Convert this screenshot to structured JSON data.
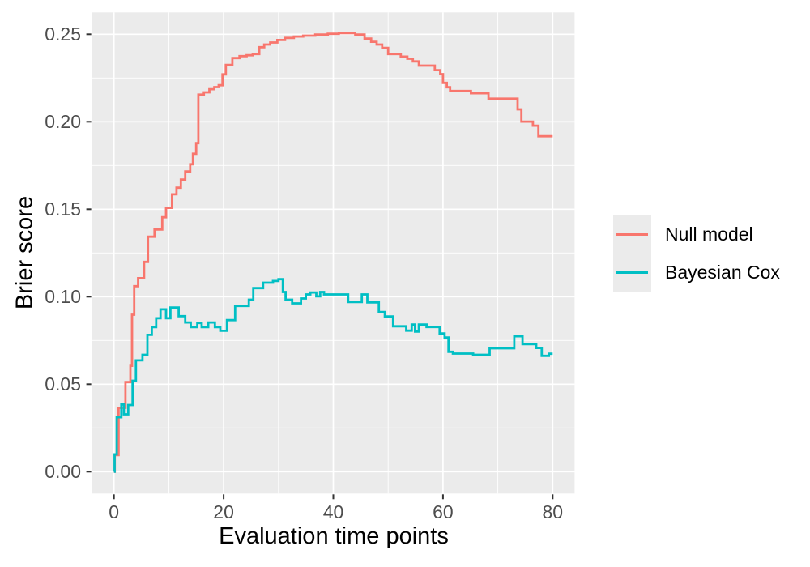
{
  "figure": {
    "background": "#ffffff"
  },
  "chart_data": {
    "type": "line",
    "variant": "step",
    "title": "",
    "xlabel": "Evaluation time points",
    "ylabel": "Brier score",
    "xlim": [
      -4,
      84
    ],
    "ylim": [
      -0.0125,
      0.2625
    ],
    "x_axis_range_shown": [
      0,
      80
    ],
    "y_axis_range_shown": [
      0.0,
      0.25
    ],
    "grid": true,
    "legend_position": "right",
    "panel_background": "#ebebeb",
    "grid_color": "#ffffff",
    "tick_color": "#333333",
    "tick_label_color": "#4d4d4d",
    "x_major_ticks": [
      {
        "value": 0,
        "label": "0"
      },
      {
        "value": 20,
        "label": "20"
      },
      {
        "value": 40,
        "label": "40"
      },
      {
        "value": 60,
        "label": "60"
      },
      {
        "value": 80,
        "label": "80"
      }
    ],
    "x_minor_ticks": [
      10,
      30,
      50,
      70
    ],
    "y_major_ticks": [
      {
        "value": 0.0,
        "label": "0.00"
      },
      {
        "value": 0.05,
        "label": "0.05"
      },
      {
        "value": 0.1,
        "label": "0.10"
      },
      {
        "value": 0.15,
        "label": "0.15"
      },
      {
        "value": 0.2,
        "label": "0.20"
      },
      {
        "value": 0.25,
        "label": "0.25"
      }
    ],
    "y_minor_ticks": [
      0.025,
      0.075,
      0.125,
      0.175,
      0.225
    ],
    "series": [
      {
        "name": "Null model",
        "color": "#F8766D",
        "points": [
          [
            0,
            0
          ],
          [
            0.15,
            0.0095
          ],
          [
            0.85,
            0.0365
          ],
          [
            2.1,
            0.0512
          ],
          [
            3.0,
            0.0605
          ],
          [
            3.3,
            0.0897
          ],
          [
            3.7,
            0.106
          ],
          [
            4.4,
            0.1106
          ],
          [
            5.5,
            0.1199
          ],
          [
            6.2,
            0.1343
          ],
          [
            7.4,
            0.1384
          ],
          [
            8.8,
            0.1454
          ],
          [
            9.5,
            0.1508
          ],
          [
            10.6,
            0.1585
          ],
          [
            11.4,
            0.1623
          ],
          [
            12.2,
            0.167
          ],
          [
            13.0,
            0.1716
          ],
          [
            13.9,
            0.1757
          ],
          [
            14.4,
            0.1817
          ],
          [
            15.0,
            0.1878
          ],
          [
            15.4,
            0.2155
          ],
          [
            16.4,
            0.2168
          ],
          [
            17.4,
            0.2186
          ],
          [
            18.3,
            0.2198
          ],
          [
            19.1,
            0.2209
          ],
          [
            19.8,
            0.2271
          ],
          [
            20.4,
            0.2325
          ],
          [
            21.6,
            0.2364
          ],
          [
            22.9,
            0.2375
          ],
          [
            24.2,
            0.238
          ],
          [
            25.3,
            0.2387
          ],
          [
            26.5,
            0.2426
          ],
          [
            27.4,
            0.2441
          ],
          [
            28.5,
            0.2453
          ],
          [
            29.8,
            0.2467
          ],
          [
            31.2,
            0.2479
          ],
          [
            32.8,
            0.2487
          ],
          [
            34.5,
            0.2492
          ],
          [
            36.7,
            0.2498
          ],
          [
            39.0,
            0.2503
          ],
          [
            41.0,
            0.2507
          ],
          [
            44.0,
            0.2498
          ],
          [
            45.7,
            0.2475
          ],
          [
            46.9,
            0.2457
          ],
          [
            47.9,
            0.2441
          ],
          [
            48.9,
            0.2422
          ],
          [
            50.0,
            0.2387
          ],
          [
            52.3,
            0.2372
          ],
          [
            53.5,
            0.236
          ],
          [
            54.5,
            0.2345
          ],
          [
            55.6,
            0.2321
          ],
          [
            58.5,
            0.2295
          ],
          [
            59.5,
            0.2272
          ],
          [
            60.0,
            0.2222
          ],
          [
            60.7,
            0.2197
          ],
          [
            61.3,
            0.2176
          ],
          [
            65.1,
            0.2163
          ],
          [
            68.3,
            0.2132
          ],
          [
            73.6,
            0.2071
          ],
          [
            74.3,
            0.2001
          ],
          [
            76.4,
            0.1978
          ],
          [
            77.4,
            0.1917
          ],
          [
            80,
            0.1917
          ]
        ]
      },
      {
        "name": "Bayesian Cox",
        "color": "#00BFC4",
        "points": [
          [
            0,
            0
          ],
          [
            0.12,
            0.0099
          ],
          [
            0.5,
            0.0311
          ],
          [
            1.35,
            0.0384
          ],
          [
            1.8,
            0.0328
          ],
          [
            2.6,
            0.0381
          ],
          [
            3.4,
            0.052
          ],
          [
            4.0,
            0.0636
          ],
          [
            5.2,
            0.0668
          ],
          [
            6.1,
            0.0782
          ],
          [
            6.9,
            0.0826
          ],
          [
            7.7,
            0.0877
          ],
          [
            8.5,
            0.0928
          ],
          [
            9.5,
            0.0877
          ],
          [
            10.3,
            0.0938
          ],
          [
            11.8,
            0.0889
          ],
          [
            13.0,
            0.0853
          ],
          [
            14.0,
            0.0826
          ],
          [
            15.2,
            0.085
          ],
          [
            16.0,
            0.0826
          ],
          [
            17.2,
            0.0853
          ],
          [
            18.4,
            0.0826
          ],
          [
            19.4,
            0.0805
          ],
          [
            20.6,
            0.0866
          ],
          [
            22.1,
            0.0947
          ],
          [
            24.6,
            0.0983
          ],
          [
            25.4,
            0.1049
          ],
          [
            27.2,
            0.108
          ],
          [
            29.0,
            0.109
          ],
          [
            30.0,
            0.11
          ],
          [
            30.8,
            0.1027
          ],
          [
            31.3,
            0.0983
          ],
          [
            32.5,
            0.0962
          ],
          [
            34.1,
            0.099
          ],
          [
            35.0,
            0.1013
          ],
          [
            35.8,
            0.1024
          ],
          [
            36.9,
            0.1002
          ],
          [
            37.6,
            0.1027
          ],
          [
            38.3,
            0.1013
          ],
          [
            42.7,
            0.097
          ],
          [
            45.2,
            0.1013
          ],
          [
            46.2,
            0.0967
          ],
          [
            48.3,
            0.0913
          ],
          [
            49.4,
            0.0887
          ],
          [
            50.9,
            0.0831
          ],
          [
            53.3,
            0.0806
          ],
          [
            54.3,
            0.0841
          ],
          [
            54.9,
            0.0801
          ],
          [
            55.6,
            0.0841
          ],
          [
            57.0,
            0.0827
          ],
          [
            59.4,
            0.079
          ],
          [
            60.3,
            0.0767
          ],
          [
            61.0,
            0.0685
          ],
          [
            61.8,
            0.0675
          ],
          [
            65.5,
            0.0668
          ],
          [
            68.5,
            0.0705
          ],
          [
            73.0,
            0.0774
          ],
          [
            74.5,
            0.0729
          ],
          [
            77.0,
            0.0707
          ],
          [
            78.0,
            0.0662
          ],
          [
            79.3,
            0.0674
          ],
          [
            80,
            0.0674
          ]
        ]
      }
    ]
  },
  "legend": {
    "key_background": "#ebebeb",
    "items": [
      {
        "label": "Null model",
        "color": "#F8766D"
      },
      {
        "label": "Bayesian Cox",
        "color": "#00BFC4"
      }
    ]
  }
}
